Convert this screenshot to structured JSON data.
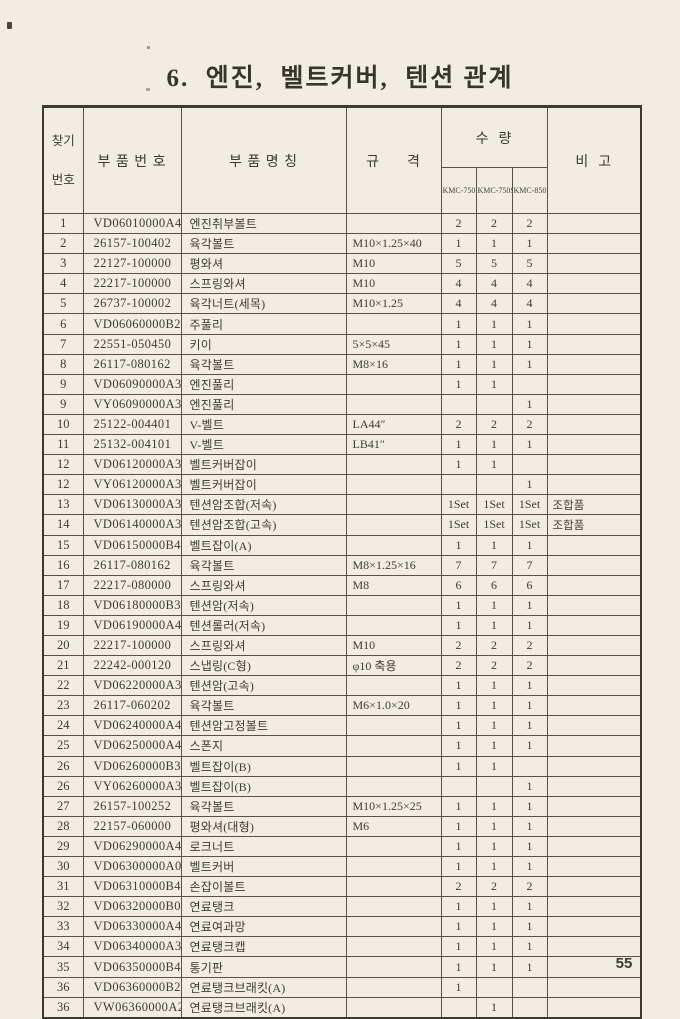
{
  "page": {
    "title": "6.  엔진,  벨트커버,  텐션 관계",
    "page_number": "55"
  },
  "colors": {
    "paper": "#f1ede2",
    "line": "#57534a",
    "outer_border": "#3c3a31",
    "text": "#3e3b32"
  },
  "table": {
    "headers": {
      "find_no_line1": "찾기",
      "find_no_line2": "번호",
      "part_no": "부 품 번 호",
      "part_name": "부 품 명 칭",
      "spec": "규      격",
      "qty": "수  량",
      "qty_models": [
        "KMC-750",
        "KMC-750S",
        "KMC-850"
      ],
      "remarks": "비  고"
    },
    "rows": [
      {
        "no": "1",
        "part_no": "VD06010000A4",
        "name": "엔진취부볼트",
        "spec": "",
        "q1": "2",
        "q2": "2",
        "q3": "2",
        "remark": ""
      },
      {
        "no": "2",
        "part_no": "26157-100402",
        "name": "육각볼트",
        "spec": "M10×1.25×40",
        "q1": "1",
        "q2": "1",
        "q3": "1",
        "remark": ""
      },
      {
        "no": "3",
        "part_no": "22127-100000",
        "name": "평와셔",
        "spec": "M10",
        "q1": "5",
        "q2": "5",
        "q3": "5",
        "remark": ""
      },
      {
        "no": "4",
        "part_no": "22217-100000",
        "name": "스프링와셔",
        "spec": "M10",
        "q1": "4",
        "q2": "4",
        "q3": "4",
        "remark": ""
      },
      {
        "no": "5",
        "part_no": "26737-100002",
        "name": "육각너트(세목)",
        "spec": "M10×1.25",
        "q1": "4",
        "q2": "4",
        "q3": "4",
        "remark": ""
      },
      {
        "no": "6",
        "part_no": "VD06060000B2",
        "name": "주풀리",
        "spec": "",
        "q1": "1",
        "q2": "1",
        "q3": "1",
        "remark": ""
      },
      {
        "no": "7",
        "part_no": "22551-050450",
        "name": "키이",
        "spec": "5×5×45",
        "q1": "1",
        "q2": "1",
        "q3": "1",
        "remark": ""
      },
      {
        "no": "8",
        "part_no": "26117-080162",
        "name": "육각볼트",
        "spec": "M8×16",
        "q1": "1",
        "q2": "1",
        "q3": "1",
        "remark": ""
      },
      {
        "no": "9",
        "part_no": "VD06090000A3",
        "name": "엔진풀리",
        "spec": "",
        "q1": "1",
        "q2": "1",
        "q3": "",
        "remark": ""
      },
      {
        "no": "9",
        "part_no": "VY06090000A3",
        "name": "엔진풀리",
        "spec": "",
        "q1": "",
        "q2": "",
        "q3": "1",
        "remark": ""
      },
      {
        "no": "10",
        "part_no": "25122-004401",
        "name": "V-벨트",
        "spec": "LA44″",
        "q1": "2",
        "q2": "2",
        "q3": "2",
        "remark": ""
      },
      {
        "no": "11",
        "part_no": "25132-004101",
        "name": "V-벨트",
        "spec": "LB41″",
        "q1": "1",
        "q2": "1",
        "q3": "1",
        "remark": ""
      },
      {
        "no": "12",
        "part_no": "VD06120000A3",
        "name": "벨트커버잡이",
        "spec": "",
        "q1": "1",
        "q2": "1",
        "q3": "",
        "remark": ""
      },
      {
        "no": "12",
        "part_no": "VY06120000A3",
        "name": "벨트커버잡이",
        "spec": "",
        "q1": "",
        "q2": "",
        "q3": "1",
        "remark": ""
      },
      {
        "no": "13",
        "part_no": "VD06130000A3",
        "name": "텐션암조합(저속)",
        "spec": "",
        "q1": "1Set",
        "q2": "1Set",
        "q3": "1Set",
        "remark": "조합품"
      },
      {
        "no": "14",
        "part_no": "VD06140000A3",
        "name": "텐션암조합(고속)",
        "spec": "",
        "q1": "1Set",
        "q2": "1Set",
        "q3": "1Set",
        "remark": "조합품"
      },
      {
        "no": "15",
        "part_no": "VD06150000B4",
        "name": "벨트잡이(A)",
        "spec": "",
        "q1": "1",
        "q2": "1",
        "q3": "1",
        "remark": ""
      },
      {
        "no": "16",
        "part_no": "26117-080162",
        "name": "육각볼트",
        "spec": "M8×1.25×16",
        "q1": "7",
        "q2": "7",
        "q3": "7",
        "remark": ""
      },
      {
        "no": "17",
        "part_no": "22217-080000",
        "name": "스프링와셔",
        "spec": "M8",
        "q1": "6",
        "q2": "6",
        "q3": "6",
        "remark": ""
      },
      {
        "no": "18",
        "part_no": "VD06180000B3",
        "name": "텐션암(저속)",
        "spec": "",
        "q1": "1",
        "q2": "1",
        "q3": "1",
        "remark": ""
      },
      {
        "no": "19",
        "part_no": "VD06190000A4",
        "name": "텐션롤러(저속)",
        "spec": "",
        "q1": "1",
        "q2": "1",
        "q3": "1",
        "remark": ""
      },
      {
        "no": "20",
        "part_no": "22217-100000",
        "name": "스프링와셔",
        "spec": "M10",
        "q1": "2",
        "q2": "2",
        "q3": "2",
        "remark": ""
      },
      {
        "no": "21",
        "part_no": "22242-000120",
        "name": "스냅링(C형)",
        "spec": "φ10 축용",
        "q1": "2",
        "q2": "2",
        "q3": "2",
        "remark": ""
      },
      {
        "no": "22",
        "part_no": "VD06220000A3",
        "name": "텐션암(고속)",
        "spec": "",
        "q1": "1",
        "q2": "1",
        "q3": "1",
        "remark": ""
      },
      {
        "no": "23",
        "part_no": "26117-060202",
        "name": "육각볼트",
        "spec": "M6×1.0×20",
        "q1": "1",
        "q2": "1",
        "q3": "1",
        "remark": ""
      },
      {
        "no": "24",
        "part_no": "VD06240000A4",
        "name": "텐션암고정볼트",
        "spec": "",
        "q1": "1",
        "q2": "1",
        "q3": "1",
        "remark": ""
      },
      {
        "no": "25",
        "part_no": "VD06250000A4",
        "name": "스폰지",
        "spec": "",
        "q1": "1",
        "q2": "1",
        "q3": "1",
        "remark": ""
      },
      {
        "no": "26",
        "part_no": "VD06260000B3",
        "name": "벨트잡이(B)",
        "spec": "",
        "q1": "1",
        "q2": "1",
        "q3": "",
        "remark": ""
      },
      {
        "no": "26",
        "part_no": "VY06260000A3",
        "name": "벨트잡이(B)",
        "spec": "",
        "q1": "",
        "q2": "",
        "q3": "1",
        "remark": ""
      },
      {
        "no": "27",
        "part_no": "26157-100252",
        "name": "육각볼트",
        "spec": "M10×1.25×25",
        "q1": "1",
        "q2": "1",
        "q3": "1",
        "remark": ""
      },
      {
        "no": "28",
        "part_no": "22157-060000",
        "name": "평와셔(대형)",
        "spec": "M6",
        "q1": "1",
        "q2": "1",
        "q3": "1",
        "remark": ""
      },
      {
        "no": "29",
        "part_no": "VD06290000A4",
        "name": "로크너트",
        "spec": "",
        "q1": "1",
        "q2": "1",
        "q3": "1",
        "remark": ""
      },
      {
        "no": "30",
        "part_no": "VD06300000A0",
        "name": "벨트커버",
        "spec": "",
        "q1": "1",
        "q2": "1",
        "q3": "1",
        "remark": ""
      },
      {
        "no": "31",
        "part_no": "VD06310000B4",
        "name": "손잡이볼트",
        "spec": "",
        "q1": "2",
        "q2": "2",
        "q3": "2",
        "remark": ""
      },
      {
        "no": "32",
        "part_no": "VD06320000B0",
        "name": "연료탱크",
        "spec": "",
        "q1": "1",
        "q2": "1",
        "q3": "1",
        "remark": ""
      },
      {
        "no": "33",
        "part_no": "VD06330000A4",
        "name": "연료여과망",
        "spec": "",
        "q1": "1",
        "q2": "1",
        "q3": "1",
        "remark": ""
      },
      {
        "no": "34",
        "part_no": "VD06340000A3",
        "name": "연료탱크캡",
        "spec": "",
        "q1": "1",
        "q2": "1",
        "q3": "1",
        "remark": ""
      },
      {
        "no": "35",
        "part_no": "VD06350000B4",
        "name": "통기판",
        "spec": "",
        "q1": "1",
        "q2": "1",
        "q3": "1",
        "remark": ""
      },
      {
        "no": "36",
        "part_no": "VD06360000B2",
        "name": "연료탱크브래킷(A)",
        "spec": "",
        "q1": "1",
        "q2": "",
        "q3": "",
        "remark": ""
      },
      {
        "no": "36",
        "part_no": "VW06360000A2",
        "name": "연료탱크브래킷(A)",
        "spec": "",
        "q1": "",
        "q2": "1",
        "q3": "",
        "remark": ""
      }
    ]
  }
}
